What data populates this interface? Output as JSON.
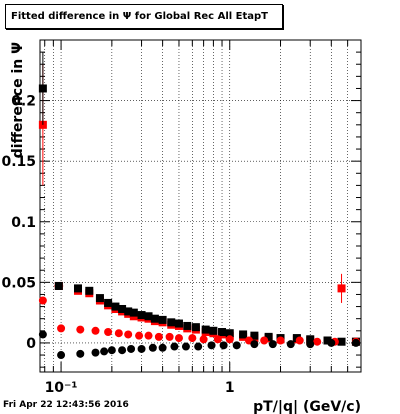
{
  "title": "Fitted difference in  Ψ  for Global Rec All EtapT",
  "datestamp": "Fri Apr 22 12:43:56 2016",
  "chart_data": {
    "type": "scatter",
    "title": "Fitted difference in  Ψ  for Global Rec All EtapT",
    "xlabel": "pT/|q| (GeV/c)",
    "ylabel": "difference in  Ψ",
    "xscale": "log",
    "xlim": [
      0.075,
      6.0
    ],
    "ylim": [
      -0.024,
      0.25
    ],
    "grid": true,
    "y_ticks": [
      {
        "value": 0,
        "label": "0"
      },
      {
        "value": 0.05,
        "label": "0.05"
      },
      {
        "value": 0.1,
        "label": "0.1"
      },
      {
        "value": 0.15,
        "label": "0.15"
      },
      {
        "value": 0.2,
        "label": "0.2"
      }
    ],
    "x_ticks": [
      {
        "value": 0.1,
        "label": "10⁻¹"
      },
      {
        "value": 1,
        "label": "1"
      }
    ],
    "series": [
      {
        "color": "#ff0000",
        "marker": "square",
        "points": [
          {
            "x": 0.078,
            "y": 0.18,
            "err": 0.05
          },
          {
            "x": 0.097,
            "y": 0.047,
            "xerr": 0.006
          },
          {
            "x": 0.126,
            "y": 0.043
          },
          {
            "x": 0.147,
            "y": 0.041
          },
          {
            "x": 0.17,
            "y": 0.035
          },
          {
            "x": 0.19,
            "y": 0.031
          },
          {
            "x": 0.21,
            "y": 0.028
          },
          {
            "x": 0.23,
            "y": 0.026
          },
          {
            "x": 0.25,
            "y": 0.024
          },
          {
            "x": 0.27,
            "y": 0.022
          },
          {
            "x": 0.3,
            "y": 0.021
          },
          {
            "x": 0.33,
            "y": 0.02
          },
          {
            "x": 0.36,
            "y": 0.018
          },
          {
            "x": 0.4,
            "y": 0.017
          },
          {
            "x": 0.45,
            "y": 0.015
          },
          {
            "x": 0.5,
            "y": 0.014
          },
          {
            "x": 0.56,
            "y": 0.012
          },
          {
            "x": 0.63,
            "y": 0.011
          },
          {
            "x": 0.72,
            "y": 0.009
          },
          {
            "x": 0.8,
            "y": 0.008
          },
          {
            "x": 0.9,
            "y": 0.007
          },
          {
            "x": 1.0,
            "y": 0.006
          },
          {
            "x": 1.2,
            "y": 0.005
          },
          {
            "x": 1.4,
            "y": 0.004
          },
          {
            "x": 1.7,
            "y": 0.004
          },
          {
            "x": 2.0,
            "y": 0.003
          },
          {
            "x": 2.5,
            "y": 0.003
          },
          {
            "x": 3.0,
            "y": 0.002
          },
          {
            "x": 3.8,
            "y": 0.002
          },
          {
            "x": 4.6,
            "y": 0.045,
            "err": 0.012
          },
          {
            "x": 5.6,
            "y": 0.001
          }
        ]
      },
      {
        "color": "#000000",
        "marker": "square",
        "points": [
          {
            "x": 0.078,
            "y": 0.21,
            "err": 0.03
          },
          {
            "x": 0.097,
            "y": 0.047
          },
          {
            "x": 0.126,
            "y": 0.045
          },
          {
            "x": 0.147,
            "y": 0.043
          },
          {
            "x": 0.17,
            "y": 0.037
          },
          {
            "x": 0.19,
            "y": 0.033
          },
          {
            "x": 0.21,
            "y": 0.03
          },
          {
            "x": 0.23,
            "y": 0.028
          },
          {
            "x": 0.25,
            "y": 0.026
          },
          {
            "x": 0.27,
            "y": 0.025
          },
          {
            "x": 0.3,
            "y": 0.023
          },
          {
            "x": 0.33,
            "y": 0.022
          },
          {
            "x": 0.36,
            "y": 0.02
          },
          {
            "x": 0.4,
            "y": 0.019
          },
          {
            "x": 0.45,
            "y": 0.017
          },
          {
            "x": 0.5,
            "y": 0.016
          },
          {
            "x": 0.56,
            "y": 0.014
          },
          {
            "x": 0.63,
            "y": 0.013
          },
          {
            "x": 0.72,
            "y": 0.011
          },
          {
            "x": 0.8,
            "y": 0.01
          },
          {
            "x": 0.9,
            "y": 0.009
          },
          {
            "x": 1.0,
            "y": 0.008
          },
          {
            "x": 1.2,
            "y": 0.007
          },
          {
            "x": 1.4,
            "y": 0.006
          },
          {
            "x": 1.7,
            "y": 0.005
          },
          {
            "x": 2.0,
            "y": 0.004
          },
          {
            "x": 2.5,
            "y": 0.004
          },
          {
            "x": 3.0,
            "y": 0.003
          },
          {
            "x": 3.8,
            "y": 0.002
          },
          {
            "x": 4.6,
            "y": 0.001
          },
          {
            "x": 5.6,
            "y": 0.001
          }
        ]
      },
      {
        "color": "#ff0000",
        "marker": "circle",
        "points": [
          {
            "x": 0.078,
            "y": 0.035
          },
          {
            "x": 0.1,
            "y": 0.012
          },
          {
            "x": 0.13,
            "y": 0.011
          },
          {
            "x": 0.16,
            "y": 0.01
          },
          {
            "x": 0.19,
            "y": 0.009
          },
          {
            "x": 0.22,
            "y": 0.008
          },
          {
            "x": 0.25,
            "y": 0.007
          },
          {
            "x": 0.29,
            "y": 0.006
          },
          {
            "x": 0.33,
            "y": 0.006
          },
          {
            "x": 0.38,
            "y": 0.005
          },
          {
            "x": 0.44,
            "y": 0.005
          },
          {
            "x": 0.5,
            "y": 0.004
          },
          {
            "x": 0.6,
            "y": 0.004
          },
          {
            "x": 0.7,
            "y": 0.003
          },
          {
            "x": 0.85,
            "y": 0.003
          },
          {
            "x": 1.0,
            "y": 0.003
          },
          {
            "x": 1.3,
            "y": 0.002
          },
          {
            "x": 1.6,
            "y": 0.002
          },
          {
            "x": 2.0,
            "y": 0.002
          },
          {
            "x": 2.6,
            "y": 0.002
          },
          {
            "x": 3.3,
            "y": 0.001
          },
          {
            "x": 4.2,
            "y": 0.001
          },
          {
            "x": 5.6,
            "y": 0.001
          }
        ]
      },
      {
        "color": "#000000",
        "marker": "circle",
        "points": [
          {
            "x": 0.078,
            "y": 0.007
          },
          {
            "x": 0.1,
            "y": -0.01
          },
          {
            "x": 0.13,
            "y": -0.009
          },
          {
            "x": 0.16,
            "y": -0.008
          },
          {
            "x": 0.18,
            "y": -0.007
          },
          {
            "x": 0.2,
            "y": -0.006
          },
          {
            "x": 0.23,
            "y": -0.006
          },
          {
            "x": 0.26,
            "y": -0.005
          },
          {
            "x": 0.3,
            "y": -0.005
          },
          {
            "x": 0.35,
            "y": -0.004
          },
          {
            "x": 0.4,
            "y": -0.004
          },
          {
            "x": 0.47,
            "y": -0.003
          },
          {
            "x": 0.55,
            "y": -0.003
          },
          {
            "x": 0.65,
            "y": -0.003
          },
          {
            "x": 0.78,
            "y": -0.002
          },
          {
            "x": 0.92,
            "y": -0.002
          },
          {
            "x": 1.1,
            "y": -0.002
          },
          {
            "x": 1.4,
            "y": -0.001
          },
          {
            "x": 1.8,
            "y": -0.001
          },
          {
            "x": 2.3,
            "y": -0.001
          },
          {
            "x": 3.0,
            "y": -0.001
          },
          {
            "x": 4.0,
            "y": 0.0
          },
          {
            "x": 5.6,
            "y": 0.0
          }
        ]
      }
    ]
  }
}
